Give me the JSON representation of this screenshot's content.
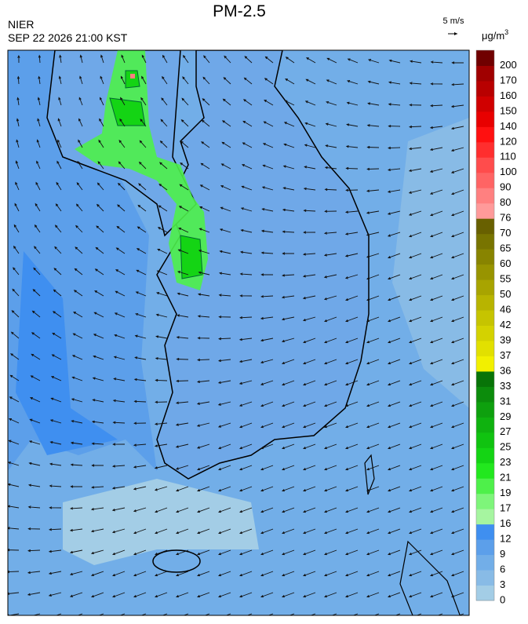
{
  "header": {
    "title": "PM-2.5",
    "source": "NIER",
    "datetime": "SEP 22 2026 21:00 KST",
    "wind_scale": "5 m/s",
    "unit": {
      "base": "μg/m",
      "sup": "3"
    }
  },
  "legend": {
    "labels": [
      "0",
      "3",
      "6",
      "9",
      "12",
      "16",
      "17",
      "19",
      "21",
      "23",
      "25",
      "27",
      "29",
      "31",
      "33",
      "36",
      "37",
      "39",
      "42",
      "46",
      "50",
      "55",
      "60",
      "65",
      "70",
      "76",
      "80",
      "90",
      "100",
      "110",
      "120",
      "140",
      "150",
      "160",
      "170",
      "200"
    ],
    "colors": [
      "#a3cde6",
      "#88bbe6",
      "#72aee8",
      "#5c9fea",
      "#3f8ff0",
      "#a6f5a0",
      "#7ef57a",
      "#4ef04a",
      "#22e81e",
      "#14d414",
      "#10c310",
      "#0fb20f",
      "#0ea00e",
      "#0c8c0c",
      "#087408",
      "#f2f000",
      "#e2e000",
      "#d4d200",
      "#c6c400",
      "#b8b400",
      "#a8a400",
      "#989400",
      "#888400",
      "#787400",
      "#686000",
      "#ff9a9a",
      "#ff8080",
      "#ff6464",
      "#ff4c4c",
      "#ff2e2e",
      "#ff1010",
      "#e80000",
      "#d00000",
      "#b80000",
      "#a00000",
      "#700000"
    ]
  }
}
